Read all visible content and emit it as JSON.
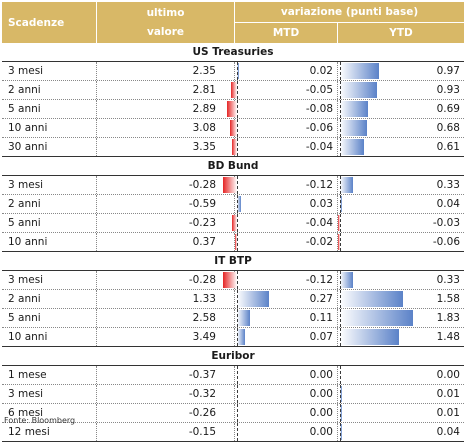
{
  "header": {
    "col1": "Scadenze",
    "col2_line1": "ultimo",
    "col2_line2": "valore",
    "group": "variazione (punti base)",
    "mtd": "MTD",
    "ytd": "YTD"
  },
  "sections": [
    {
      "title": "US Treasuries",
      "rows": [
        {
          "name": "3 mesi",
          "value": "2.35",
          "mtd": "0.02",
          "ytd": "0.97"
        },
        {
          "name": "2 anni",
          "value": "2.81",
          "mtd": "-0.05",
          "ytd": "0.93"
        },
        {
          "name": "5 anni",
          "value": "2.89",
          "mtd": "-0.08",
          "ytd": "0.69"
        },
        {
          "name": "10 anni",
          "value": "3.08",
          "mtd": "-0.06",
          "ytd": "0.68"
        },
        {
          "name": "30 anni",
          "value": "3.35",
          "mtd": "-0.04",
          "ytd": "0.61"
        }
      ]
    },
    {
      "title": "BD Bund",
      "rows": [
        {
          "name": "3 mesi",
          "value": "-0.28",
          "mtd": "-0.12",
          "ytd": "0.33"
        },
        {
          "name": "2 anni",
          "value": "-0.59",
          "mtd": "0.03",
          "ytd": "0.04"
        },
        {
          "name": "5 anni",
          "value": "-0.23",
          "mtd": "-0.04",
          "ytd": "-0.03"
        },
        {
          "name": "10 anni",
          "value": "0.37",
          "mtd": "-0.02",
          "ytd": "-0.06"
        }
      ]
    },
    {
      "title": "IT BTP",
      "rows": [
        {
          "name": "3 mesi",
          "value": "-0.28",
          "mtd": "-0.12",
          "ytd": "0.33"
        },
        {
          "name": "2 anni",
          "value": "1.33",
          "mtd": "0.27",
          "ytd": "1.58"
        },
        {
          "name": "5 anni",
          "value": "2.58",
          "mtd": "0.11",
          "ytd": "1.83"
        },
        {
          "name": "10 anni",
          "value": "3.49",
          "mtd": "0.07",
          "ytd": "1.48"
        }
      ]
    },
    {
      "title": "Euribor",
      "rows": [
        {
          "name": "1 mese",
          "value": "-0.37",
          "mtd": "0.00",
          "ytd": "0.00"
        },
        {
          "name": "3 mesi",
          "value": "-0.32",
          "mtd": "0.00",
          "ytd": "0.01"
        },
        {
          "name": "6 mesi",
          "value": "-0.26",
          "mtd": "0.00",
          "ytd": "0.01"
        },
        {
          "name": "12 mesi",
          "value": "-0.15",
          "mtd": "0.00",
          "ytd": "0.04"
        }
      ]
    }
  ],
  "source": "Fonte: Bloomberg",
  "colors": {
    "header": "#d8b867",
    "positive": "#5b82c8",
    "negative": "#e52525"
  }
}
